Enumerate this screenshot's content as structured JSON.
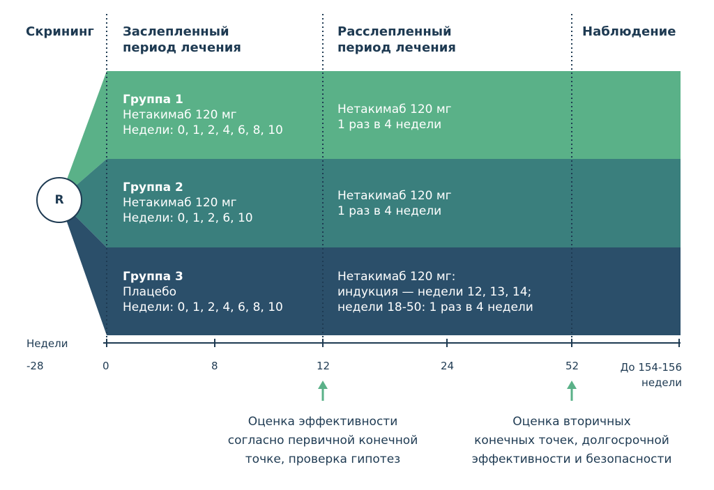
{
  "headers": {
    "screening": "Скрининг",
    "blinded": [
      "Заслепленный",
      "период лечения"
    ],
    "unblinded": [
      "Расслепленный",
      "период лечения"
    ],
    "observation": "Наблюдение"
  },
  "randomization_label": "R",
  "colors": {
    "group1": "#5ab188",
    "group2": "#3a7f7d",
    "group3": "#2b4f6a",
    "text_dark": "#1e3a52",
    "arrow": "#5ab188"
  },
  "groups": [
    {
      "name": "Группа 1",
      "blinded_lines": [
        "Нетакимаб 120 мг",
        "Недели: 0, 1, 2, 4, 6, 8, 10"
      ],
      "unblinded_lines": [
        "Нетакимаб 120 мг",
        "1 раз в 4 недели"
      ]
    },
    {
      "name": "Группа 2",
      "blinded_lines": [
        "Нетакимаб 120 мг",
        "Недели: 0, 1, 2, 6, 10"
      ],
      "unblinded_lines": [
        "Нетакимаб 120 мг",
        "1 раз в 4 недели"
      ]
    },
    {
      "name": "Группа 3",
      "blinded_lines": [
        "Плацебо",
        "Недели: 0, 1, 2, 4, 6, 8, 10"
      ],
      "unblinded_lines": [
        "Нетакимаб 120 мг:",
        "индукция — недели 12, 13, 14;",
        "недели 18-50: 1 раз в 4 недели"
      ]
    }
  ],
  "axis": {
    "title": "Недели",
    "ticks": [
      "-28",
      "0",
      "8",
      "12",
      "24",
      "52"
    ],
    "end_label": [
      "До 154-156",
      "недели"
    ]
  },
  "notes": {
    "week12": [
      "Оценка эффективности",
      "согласно первичной конечной",
      "точке, проверка гипотез"
    ],
    "week52": [
      "Оценка вторичных",
      "конечных точек, долгосрочной",
      "эффективности и безопасности"
    ]
  }
}
